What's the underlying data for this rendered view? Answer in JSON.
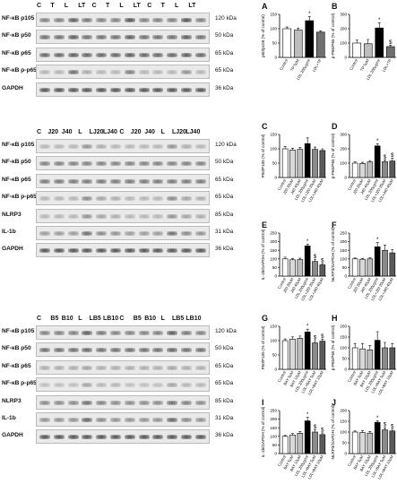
{
  "sections": [
    {
      "lanes": [
        "C",
        "T",
        "L",
        "LT",
        "C",
        "T",
        "L",
        "LT",
        "C",
        "T",
        "L",
        "LT"
      ],
      "rows": [
        {
          "label": "NF-κB p105",
          "mw": "120 kDa",
          "intensity": [
            0.6,
            0.6,
            0.8,
            0.65,
            0.6,
            0.6,
            0.85,
            0.6,
            0.6,
            0.6,
            0.85,
            0.6
          ]
        },
        {
          "label": "NF-κB p50",
          "mw": "50 kDa",
          "intensity": [
            0.7,
            0.7,
            0.8,
            0.7,
            0.7,
            0.7,
            0.8,
            0.7,
            0.7,
            0.7,
            0.8,
            0.7
          ]
        },
        {
          "label": "NF-κB p65",
          "mw": "65 kDa",
          "intensity": [
            0.75,
            0.75,
            0.8,
            0.75,
            0.75,
            0.75,
            0.8,
            0.75,
            0.75,
            0.75,
            0.8,
            0.75
          ]
        },
        {
          "label": "NF-κB p-p65",
          "mw": "65 kDa",
          "intensity": [
            0.3,
            0.3,
            0.7,
            0.35,
            0.3,
            0.3,
            0.6,
            0.3,
            0.3,
            0.3,
            0.5,
            0.3
          ]
        },
        {
          "label": "GAPDH",
          "mw": "36 kDa",
          "intensity": [
            0.85,
            0.85,
            0.85,
            0.85,
            0.85,
            0.85,
            0.85,
            0.85,
            0.85,
            0.85,
            0.85,
            0.85
          ]
        }
      ]
    },
    {
      "lanes": [
        "C",
        "J20",
        "J40",
        "L",
        "LJ20",
        "LJ40",
        "C",
        "J20",
        "J40",
        "L",
        "LJ20",
        "LJ40"
      ],
      "rows": [
        {
          "label": "NF-κB p105",
          "mw": "120 kDa",
          "intensity": [
            0.3,
            0.3,
            0.3,
            0.5,
            0.35,
            0.3,
            0.3,
            0.3,
            0.3,
            0.5,
            0.35,
            0.3
          ]
        },
        {
          "label": "NF-κB p50",
          "mw": "50 kDa",
          "intensity": [
            0.6,
            0.6,
            0.6,
            0.6,
            0.6,
            0.6,
            0.6,
            0.6,
            0.6,
            0.6,
            0.6,
            0.6
          ]
        },
        {
          "label": "NF-κB p65",
          "mw": "65 kDa",
          "intensity": [
            0.65,
            0.65,
            0.65,
            0.65,
            0.65,
            0.65,
            0.65,
            0.65,
            0.65,
            0.65,
            0.65,
            0.65
          ]
        },
        {
          "label": "NF-κB p-p65",
          "mw": "65 kDa",
          "intensity": [
            0.3,
            0.3,
            0.3,
            0.55,
            0.4,
            0.35,
            0.3,
            0.3,
            0.3,
            0.55,
            0.4,
            0.35
          ]
        },
        {
          "label": "NLRP3",
          "mw": "85 kDa",
          "intensity": [
            0.3,
            0.3,
            0.3,
            0.5,
            0.4,
            0.35,
            0.3,
            0.3,
            0.3,
            0.5,
            0.4,
            0.35
          ]
        },
        {
          "label": "IL-1b",
          "mw": "31 kDa",
          "intensity": [
            0.45,
            0.45,
            0.45,
            0.7,
            0.55,
            0.5,
            0.45,
            0.45,
            0.45,
            0.7,
            0.55,
            0.5
          ]
        },
        {
          "label": "GAPDH",
          "mw": "36 kDa",
          "intensity": [
            0.85,
            0.85,
            0.85,
            0.85,
            0.85,
            0.85,
            0.85,
            0.85,
            0.85,
            0.85,
            0.85,
            0.85
          ]
        }
      ]
    },
    {
      "lanes": [
        "C",
        "B5",
        "B10",
        "L",
        "LB5",
        "LB10",
        "C",
        "B5",
        "B10",
        "L",
        "LB5",
        "LB10"
      ],
      "rows": [
        {
          "label": "NF-κB p105",
          "mw": "120 kDa",
          "intensity": [
            0.6,
            0.6,
            0.6,
            0.8,
            0.65,
            0.6,
            0.6,
            0.6,
            0.6,
            0.8,
            0.65,
            0.6
          ]
        },
        {
          "label": "NF-κB p50",
          "mw": "50 kDa",
          "intensity": [
            0.7,
            0.7,
            0.7,
            0.75,
            0.7,
            0.7,
            0.7,
            0.7,
            0.7,
            0.75,
            0.7,
            0.7
          ]
        },
        {
          "label": "NF-κB p65",
          "mw": "65 kDa",
          "intensity": [
            0.35,
            0.35,
            0.35,
            0.4,
            0.35,
            0.35,
            0.35,
            0.35,
            0.35,
            0.4,
            0.35,
            0.35
          ]
        },
        {
          "label": "NF-κB p-p65",
          "mw": "65 kDa",
          "intensity": [
            0.25,
            0.25,
            0.25,
            0.4,
            0.3,
            0.3,
            0.25,
            0.25,
            0.25,
            0.4,
            0.3,
            0.3
          ]
        },
        {
          "label": "NLRP3",
          "mw": "85 kDa",
          "intensity": [
            0.55,
            0.55,
            0.55,
            0.7,
            0.6,
            0.55,
            0.55,
            0.55,
            0.55,
            0.7,
            0.6,
            0.55
          ]
        },
        {
          "label": "IL-1b",
          "mw": "31 kDa",
          "intensity": [
            0.5,
            0.5,
            0.5,
            0.75,
            0.55,
            0.5,
            0.5,
            0.5,
            0.5,
            0.75,
            0.55,
            0.5
          ]
        },
        {
          "label": "GAPDH",
          "mw": "36 kDa",
          "intensity": [
            0.85,
            0.85,
            0.85,
            0.85,
            0.85,
            0.85,
            0.85,
            0.85,
            0.85,
            0.85,
            0.85,
            0.85
          ]
        }
      ]
    }
  ],
  "chart_data": [
    {
      "id": "A",
      "type": "bar",
      "ylabel": "p50/p105 (% of control)",
      "categories": [
        "Control",
        "TP 5μM",
        "LDL 200μg/ml",
        "LDL+TP"
      ],
      "values": [
        100,
        95,
        128,
        88
      ],
      "errors": [
        6,
        7,
        14,
        4
      ],
      "ylim": [
        0,
        150
      ],
      "yticks": [
        0,
        50,
        100,
        150
      ],
      "colors": [
        "#ffffff",
        "#bdbdbd",
        "#000000",
        "#707070"
      ],
      "annotations": [
        "",
        "",
        "*",
        ""
      ]
    },
    {
      "id": "B",
      "type": "bar",
      "ylabel": "p-P65/P65 (% of control)",
      "categories": [
        "Control",
        "TP 5μM",
        "LDL 200μg/ml",
        "LDL+TP"
      ],
      "values": [
        100,
        95,
        205,
        75
      ],
      "errors": [
        20,
        30,
        35,
        10
      ],
      "ylim": [
        0,
        300
      ],
      "yticks": [
        0,
        100,
        200,
        300
      ],
      "colors": [
        "#ffffff",
        "#bdbdbd",
        "#000000",
        "#707070"
      ],
      "annotations": [
        "",
        "",
        "*",
        "$"
      ]
    },
    {
      "id": "C",
      "type": "bar",
      "ylabel": "P50/P105 (% of control)",
      "categories": [
        "Control",
        "J20 20μM",
        "J40 40μM",
        "LDL 200μg/ml",
        "LDL+J20 20μM",
        "LDL+J40 40μM"
      ],
      "values": [
        100,
        96,
        98,
        118,
        98,
        94
      ],
      "errors": [
        8,
        6,
        7,
        20,
        8,
        6
      ],
      "ylim": [
        0,
        150
      ],
      "yticks": [
        0,
        50,
        100,
        150
      ],
      "colors": [
        "#ffffff",
        "#d9d9d9",
        "#bdbdbd",
        "#000000",
        "#8a8a8a",
        "#5a5a5a"
      ],
      "annotations": [
        "",
        "",
        "",
        "",
        "",
        ""
      ]
    },
    {
      "id": "D",
      "type": "bar",
      "ylabel": "p-P65/P65 (% of control)",
      "categories": [
        "Control",
        "J20 20μM",
        "J40 40μM",
        "LDL 200μg/ml",
        "LDL+J20 20μM",
        "LDL+J40 40μM"
      ],
      "values": [
        100,
        98,
        108,
        220,
        110,
        115
      ],
      "errors": [
        8,
        8,
        10,
        15,
        12,
        18
      ],
      "ylim": [
        0,
        300
      ],
      "yticks": [
        0,
        100,
        200,
        300
      ],
      "colors": [
        "#ffffff",
        "#d9d9d9",
        "#bdbdbd",
        "#000000",
        "#8a8a8a",
        "#5a5a5a"
      ],
      "annotations": [
        "",
        "",
        "",
        "*",
        "$",
        "$"
      ]
    },
    {
      "id": "E",
      "type": "bar",
      "ylabel": "IL-1b/GAPDH (% of control)",
      "categories": [
        "Control",
        "J20 20μM",
        "J40 40μM",
        "LDL 200μg/ml",
        "LDL+J20 20μM",
        "LDL+J40 40μM"
      ],
      "values": [
        100,
        95,
        96,
        175,
        85,
        65
      ],
      "errors": [
        10,
        8,
        8,
        10,
        12,
        8
      ],
      "ylim": [
        0,
        250
      ],
      "yticks": [
        0,
        50,
        100,
        150,
        200,
        250
      ],
      "colors": [
        "#ffffff",
        "#d9d9d9",
        "#bdbdbd",
        "#000000",
        "#8a8a8a",
        "#5a5a5a"
      ],
      "annotations": [
        "",
        "",
        "",
        "*",
        "$",
        "$"
      ]
    },
    {
      "id": "F",
      "type": "bar",
      "ylabel": "NLRP3/GAPDH (% of control)",
      "categories": [
        "Control",
        "J20 20μM",
        "J40 40μM",
        "LDL 200μg/ml",
        "LDL+J20 20μM",
        "LDL+J40 40μM"
      ],
      "values": [
        100,
        98,
        100,
        170,
        150,
        135
      ],
      "errors": [
        5,
        5,
        6,
        25,
        30,
        20
      ],
      "ylim": [
        0,
        250
      ],
      "yticks": [
        0,
        50,
        100,
        150,
        200,
        250
      ],
      "colors": [
        "#ffffff",
        "#d9d9d9",
        "#bdbdbd",
        "#000000",
        "#8a8a8a",
        "#5a5a5a"
      ],
      "annotations": [
        "",
        "",
        "",
        "*",
        "",
        ""
      ]
    },
    {
      "id": "G",
      "type": "bar",
      "ylabel": "P50/P105 (% of control)",
      "categories": [
        "Control",
        "BAY 5μM",
        "BAY 10μM",
        "LDL 200μg/ml",
        "LDL+BAY 5μM",
        "LDL+BAY 10μM"
      ],
      "values": [
        100,
        105,
        108,
        130,
        92,
        98
      ],
      "errors": [
        6,
        8,
        8,
        10,
        8,
        7
      ],
      "ylim": [
        0,
        150
      ],
      "yticks": [
        0,
        50,
        100,
        150
      ],
      "colors": [
        "#ffffff",
        "#d9d9d9",
        "#bdbdbd",
        "#000000",
        "#8a8a8a",
        "#5a5a5a"
      ],
      "annotations": [
        "",
        "",
        "",
        "*",
        "$",
        "$"
      ]
    },
    {
      "id": "H",
      "type": "bar",
      "ylabel": "p-P65/P65 (% of control)",
      "categories": [
        "Control",
        "BAY 5μM",
        "BAY 10μM",
        "LDL 200μg/ml",
        "LDL+BAY 5μM",
        "LDL+BAY 10μM"
      ],
      "values": [
        100,
        95,
        90,
        135,
        100,
        100
      ],
      "errors": [
        20,
        25,
        20,
        40,
        25,
        20
      ],
      "ylim": [
        0,
        200
      ],
      "yticks": [
        0,
        50,
        100,
        150,
        200
      ],
      "colors": [
        "#ffffff",
        "#d9d9d9",
        "#bdbdbd",
        "#000000",
        "#8a8a8a",
        "#5a5a5a"
      ],
      "annotations": [
        "",
        "",
        "",
        "",
        "",
        ""
      ]
    },
    {
      "id": "I",
      "type": "bar",
      "ylabel": "IL-1b/GAPDH (% of control)",
      "categories": [
        "Control",
        "BAY 5μM",
        "BAY 10μM",
        "LDL 200μg/ml",
        "LDL+BAY 5μM",
        "LDL+BAY 10μM"
      ],
      "values": [
        100,
        108,
        118,
        190,
        125,
        110
      ],
      "errors": [
        5,
        8,
        10,
        20,
        12,
        10
      ],
      "ylim": [
        0,
        250
      ],
      "yticks": [
        0,
        50,
        100,
        150,
        200,
        250
      ],
      "colors": [
        "#ffffff",
        "#d9d9d9",
        "#bdbdbd",
        "#000000",
        "#8a8a8a",
        "#5a5a5a"
      ],
      "annotations": [
        "",
        "",
        "",
        "*",
        "$",
        "$"
      ]
    },
    {
      "id": "J",
      "type": "bar",
      "ylabel": "NLRP3/GAPDH (% of control)",
      "categories": [
        "Control",
        "BAY 5μM",
        "BAY 10μM",
        "LDL 200μg/ml",
        "LDL+BAY 5μM",
        "LDL+BAY 10μM"
      ],
      "values": [
        100,
        98,
        95,
        145,
        110,
        105
      ],
      "errors": [
        5,
        8,
        8,
        8,
        10,
        8
      ],
      "ylim": [
        0,
        200
      ],
      "yticks": [
        0,
        50,
        100,
        150,
        200
      ],
      "colors": [
        "#ffffff",
        "#d9d9d9",
        "#bdbdbd",
        "#000000",
        "#8a8a8a",
        "#5a5a5a"
      ],
      "annotations": [
        "",
        "",
        "",
        "*",
        "$",
        "$"
      ]
    }
  ]
}
